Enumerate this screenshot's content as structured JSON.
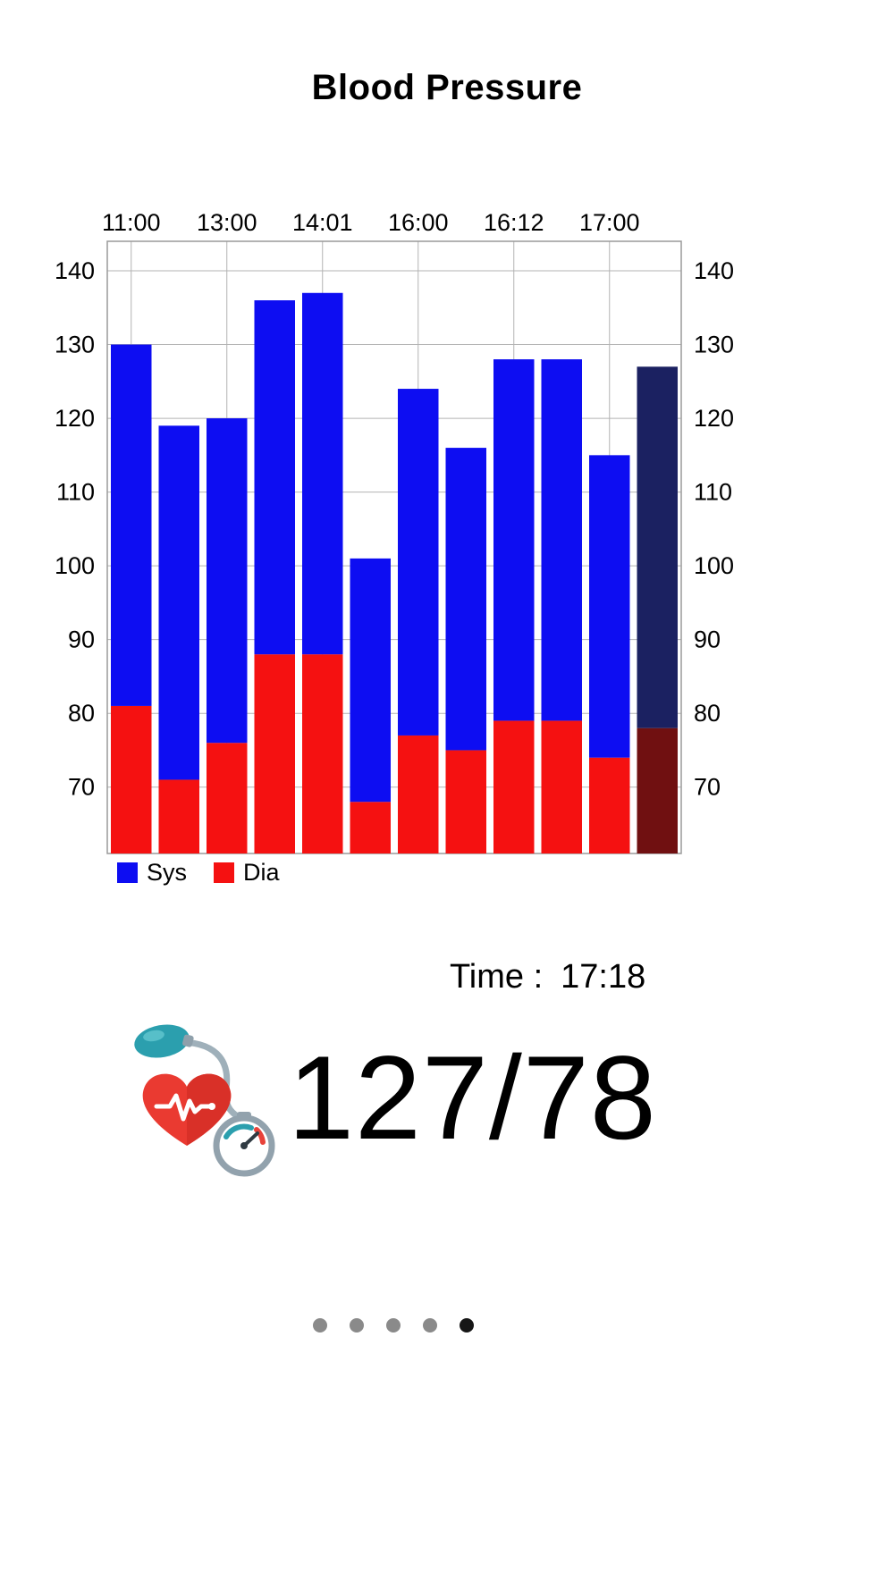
{
  "title": "Blood Pressure",
  "chart_data": {
    "type": "bar",
    "stacked": true,
    "x_tick_labels": [
      "11:00",
      "13:00",
      "14:01",
      "16:00",
      "16:12",
      "17:00"
    ],
    "x_tick_bar_indices": [
      0,
      2,
      4,
      6,
      8,
      10
    ],
    "y_ticks": [
      70,
      80,
      90,
      100,
      110,
      120,
      130,
      140
    ],
    "ylim": [
      61,
      144
    ],
    "grid": true,
    "legend_position": "bottom-left",
    "series": [
      {
        "name": "Sys",
        "color": "#0d0df2",
        "values": [
          130,
          119,
          120,
          136,
          137,
          101,
          124,
          116,
          128,
          128,
          115,
          127
        ]
      },
      {
        "name": "Dia",
        "color": "#f51111",
        "values": [
          81,
          71,
          76,
          88,
          88,
          68,
          77,
          75,
          79,
          79,
          74,
          78
        ]
      }
    ],
    "highlight_index": 11,
    "highlight_colors": {
      "Sys": "#1b2161",
      "Dia": "#701011"
    },
    "legend": [
      {
        "label": "Sys",
        "color": "#0d0df2"
      },
      {
        "label": "Dia",
        "color": "#f51111"
      }
    ]
  },
  "reading": {
    "time_label": "Time :",
    "time_value": "17:18",
    "value": "127/78"
  },
  "icon": {
    "name": "blood-pressure-monitor"
  },
  "pagination": {
    "count": 5,
    "active_index": 4
  }
}
